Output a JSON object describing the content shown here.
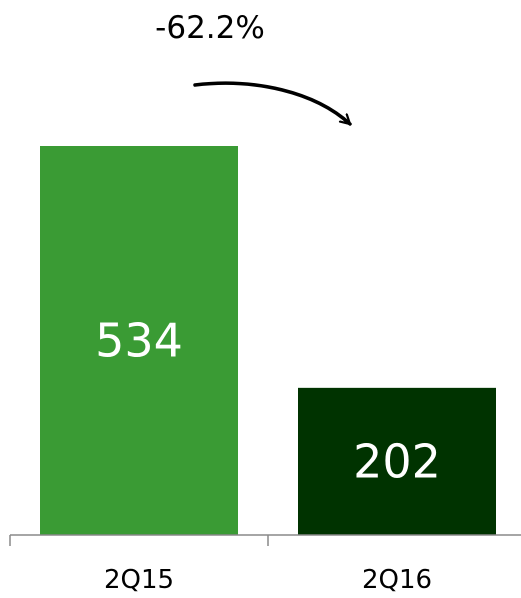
{
  "chart_data": {
    "type": "bar",
    "categories": [
      "2Q15",
      "2Q16"
    ],
    "values": [
      534,
      202
    ],
    "data_labels": [
      "534",
      "202"
    ],
    "bar_colors": [
      "#3a9b34",
      "#003300"
    ],
    "change_annotation": "-62.2%",
    "title": "",
    "xlabel": "",
    "ylabel": "",
    "ylim": [
      0,
      534
    ],
    "grid": false,
    "legend": false
  }
}
